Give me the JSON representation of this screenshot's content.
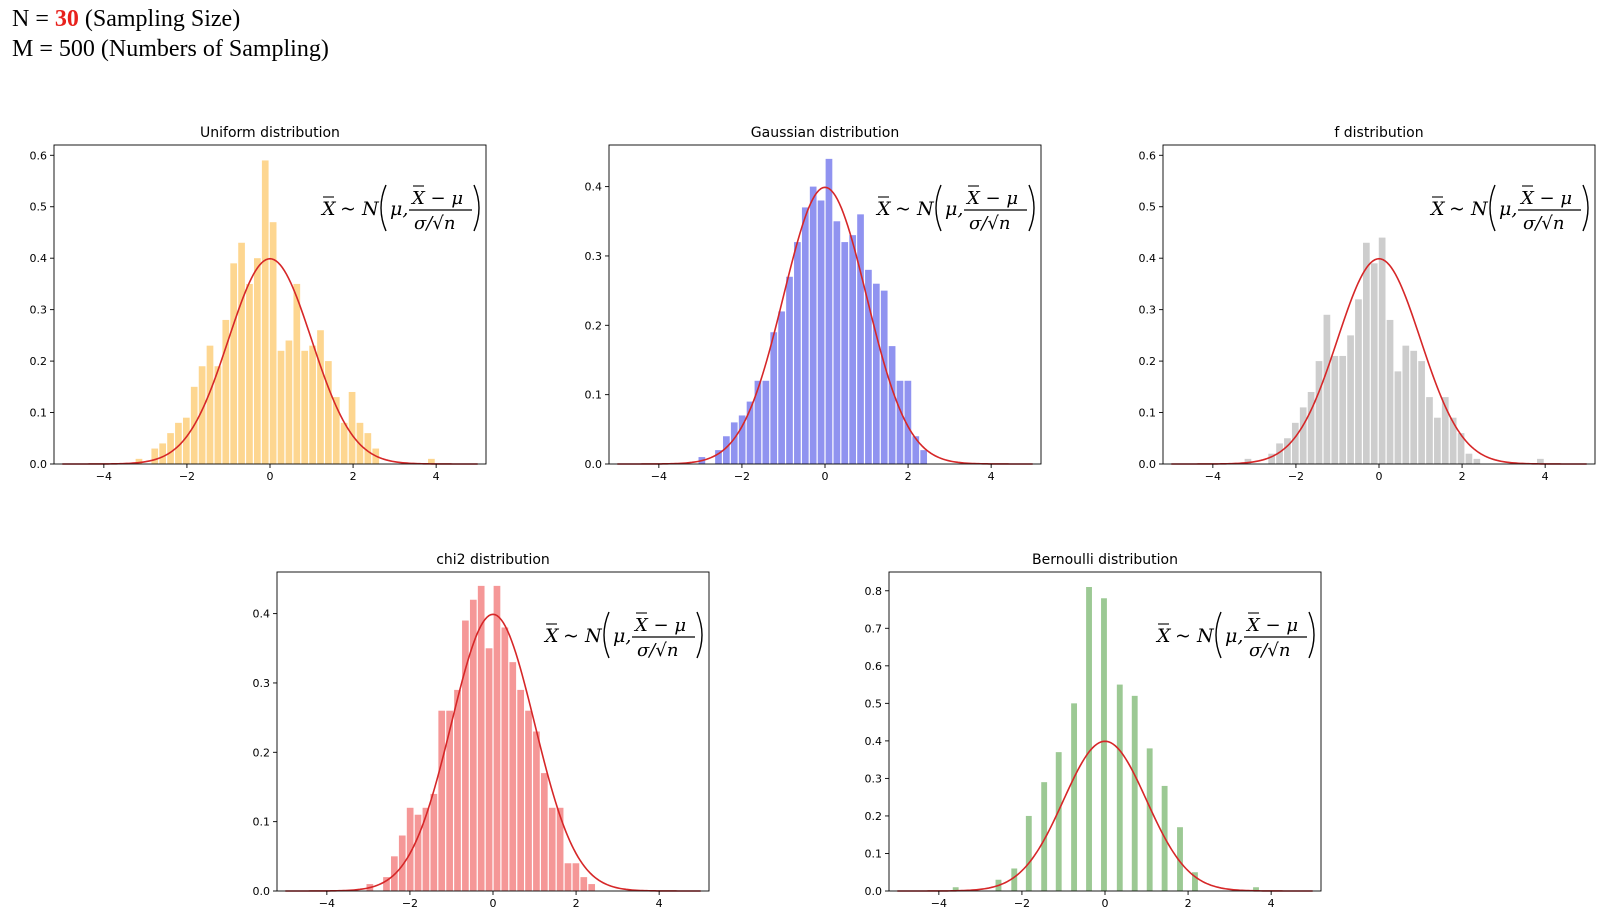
{
  "header": {
    "line1_prefix": "N = ",
    "line1_value": "30",
    "line1_suffix": " (Sampling Size)",
    "line2": "M = 500 (Numbers of Sampling)",
    "value_color": "#e8211c"
  },
  "curve_color": "#d62728",
  "chart_data": [
    {
      "type": "bar",
      "title": "Uniform distribution",
      "bar_color": "#fdd690",
      "xlim": [
        -5.2,
        5.2
      ],
      "ylim": [
        0,
        0.62
      ],
      "xticks": [
        -4,
        -2,
        0,
        2,
        4
      ],
      "yticks": [
        0.0,
        0.1,
        0.2,
        0.3,
        0.4,
        0.5,
        0.6
      ],
      "bin_width": 0.19,
      "x": [
        -3.14,
        -2.76,
        -2.57,
        -2.38,
        -2.19,
        -2.0,
        -1.81,
        -1.62,
        -1.43,
        -1.24,
        -1.05,
        -0.86,
        -0.67,
        -0.48,
        -0.29,
        -0.1,
        0.09,
        0.28,
        0.47,
        0.66,
        0.85,
        1.04,
        1.23,
        1.42,
        1.61,
        1.8,
        1.99,
        2.18,
        2.37,
        2.56,
        3.9
      ],
      "y": [
        0.01,
        0.03,
        0.04,
        0.06,
        0.08,
        0.09,
        0.15,
        0.19,
        0.23,
        0.19,
        0.28,
        0.39,
        0.43,
        0.35,
        0.4,
        0.59,
        0.47,
        0.22,
        0.24,
        0.35,
        0.22,
        0.23,
        0.26,
        0.2,
        0.13,
        0.08,
        0.14,
        0.08,
        0.06,
        0.03,
        0.01
      ],
      "annotation": {
        "lhs": "X",
        "sim": "~ N",
        "mu": "μ,",
        "num": "X − μ",
        "den": "σ/√n"
      }
    },
    {
      "type": "bar",
      "title": "Gaussian distribution",
      "bar_color": "#9093f0",
      "xlim": [
        -5.2,
        5.2
      ],
      "ylim": [
        0,
        0.46
      ],
      "xticks": [
        -4,
        -2,
        0,
        2,
        4
      ],
      "yticks": [
        0.0,
        0.1,
        0.2,
        0.3,
        0.4
      ],
      "bin_width": 0.19,
      "x": [
        -2.95,
        -2.55,
        -2.36,
        -2.17,
        -1.98,
        -1.79,
        -1.6,
        -1.41,
        -1.22,
        -1.03,
        -0.84,
        -0.65,
        -0.46,
        -0.27,
        -0.08,
        0.11,
        0.3,
        0.49,
        0.68,
        0.87,
        1.06,
        1.25,
        1.44,
        1.63,
        1.82,
        2.01,
        2.2,
        2.39
      ],
      "y": [
        0.01,
        0.02,
        0.04,
        0.06,
        0.07,
        0.09,
        0.12,
        0.12,
        0.19,
        0.22,
        0.27,
        0.32,
        0.37,
        0.4,
        0.38,
        0.44,
        0.35,
        0.32,
        0.33,
        0.36,
        0.28,
        0.26,
        0.25,
        0.17,
        0.12,
        0.12,
        0.04,
        0.02
      ],
      "annotation": {
        "lhs": "X",
        "sim": "~ N",
        "mu": "μ,",
        "num": "X − μ",
        "den": "σ/√n"
      }
    },
    {
      "type": "bar",
      "title": "f distribution",
      "bar_color": "#cdcdcd",
      "xlim": [
        -5.2,
        5.2
      ],
      "ylim": [
        0,
        0.62
      ],
      "xticks": [
        -4,
        -2,
        0,
        2,
        4
      ],
      "yticks": [
        0.0,
        0.1,
        0.2,
        0.3,
        0.4,
        0.5,
        0.6
      ],
      "bin_width": 0.19,
      "x": [
        -3.14,
        -2.57,
        -2.38,
        -2.19,
        -2.0,
        -1.81,
        -1.62,
        -1.43,
        -1.24,
        -1.05,
        -0.86,
        -0.67,
        -0.48,
        -0.29,
        -0.1,
        0.09,
        0.28,
        0.47,
        0.66,
        0.85,
        1.04,
        1.23,
        1.42,
        1.61,
        1.8,
        1.99,
        2.18,
        2.37,
        3.9
      ],
      "y": [
        0.01,
        0.02,
        0.04,
        0.05,
        0.08,
        0.11,
        0.14,
        0.2,
        0.29,
        0.21,
        0.21,
        0.25,
        0.32,
        0.43,
        0.39,
        0.44,
        0.28,
        0.18,
        0.23,
        0.22,
        0.2,
        0.13,
        0.09,
        0.13,
        0.09,
        0.06,
        0.02,
        0.01,
        0.01
      ],
      "annotation": {
        "lhs": "X",
        "sim": "~ N",
        "mu": "μ,",
        "num": "X − μ",
        "den": "σ/√n"
      }
    },
    {
      "type": "bar",
      "title": "chi2 distribution",
      "bar_color": "#f59797",
      "xlim": [
        -5.2,
        5.2
      ],
      "ylim": [
        0,
        0.46
      ],
      "xticks": [
        -4,
        -2,
        0,
        2,
        4
      ],
      "yticks": [
        0.0,
        0.1,
        0.2,
        0.3,
        0.4
      ],
      "bin_width": 0.19,
      "x": [
        -2.95,
        -2.55,
        -2.36,
        -2.17,
        -1.98,
        -1.79,
        -1.6,
        -1.41,
        -1.22,
        -1.03,
        -0.84,
        -0.65,
        -0.46,
        -0.27,
        -0.08,
        0.11,
        0.3,
        0.49,
        0.68,
        0.87,
        1.06,
        1.25,
        1.44,
        1.63,
        1.82,
        2.01,
        2.2,
        2.39
      ],
      "y": [
        0.01,
        0.02,
        0.05,
        0.08,
        0.12,
        0.11,
        0.12,
        0.14,
        0.26,
        0.26,
        0.29,
        0.39,
        0.42,
        0.44,
        0.35,
        0.44,
        0.38,
        0.33,
        0.29,
        0.26,
        0.23,
        0.17,
        0.12,
        0.12,
        0.04,
        0.04,
        0.02,
        0.01
      ],
      "annotation": {
        "lhs": "X",
        "sim": "~ N",
        "mu": "μ,",
        "num": "X − μ",
        "den": "σ/√n"
      }
    },
    {
      "type": "bar",
      "title": "Bernoulli distribution",
      "bar_color": "#9cc994",
      "xlim": [
        -5.2,
        5.2
      ],
      "ylim": [
        0,
        0.85
      ],
      "xticks": [
        -4,
        -2,
        0,
        2,
        4
      ],
      "yticks": [
        0.0,
        0.1,
        0.2,
        0.3,
        0.4,
        0.5,
        0.6,
        0.7,
        0.8
      ],
      "bin_width": 0.17,
      "x": [
        -3.58,
        -2.55,
        -2.17,
        -1.82,
        -1.45,
        -1.1,
        -0.73,
        -0.37,
        -0.01,
        0.37,
        0.73,
        1.09,
        1.45,
        1.82,
        2.18,
        3.65
      ],
      "y": [
        0.01,
        0.03,
        0.06,
        0.2,
        0.29,
        0.37,
        0.5,
        0.81,
        0.78,
        0.55,
        0.52,
        0.38,
        0.28,
        0.17,
        0.05,
        0.01
      ],
      "annotation": {
        "lhs": "X",
        "sim": "~ N",
        "mu": "μ,",
        "num": "X − μ",
        "den": "σ/√n"
      }
    }
  ]
}
